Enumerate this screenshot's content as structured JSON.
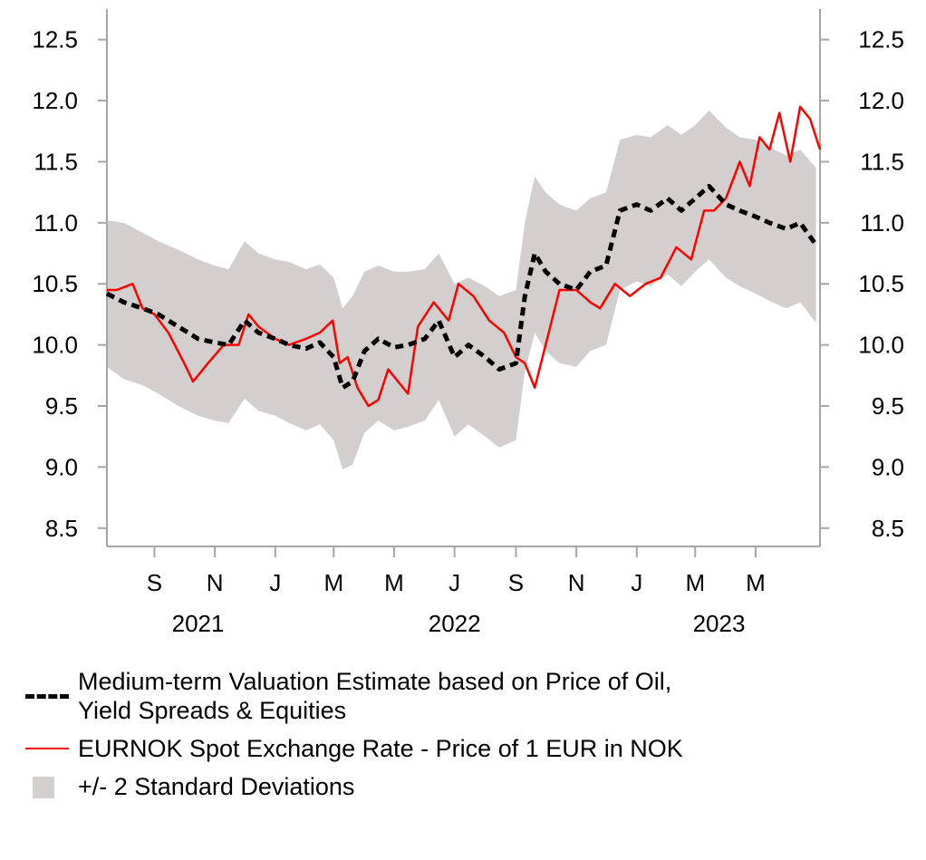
{
  "chart_data": {
    "type": "line",
    "title": "",
    "xlabel": "",
    "ylabel": "",
    "ylim": [
      8.35,
      12.75
    ],
    "yticks": [
      "12.5",
      "12.0",
      "11.5",
      "11.0",
      "10.5",
      "10.0",
      "9.5",
      "9.0",
      "8.5"
    ],
    "ytick_values": [
      12.5,
      12.0,
      11.5,
      11.0,
      10.5,
      10.0,
      9.5,
      9.0,
      8.5
    ],
    "x_range": [
      "2021-07-15",
      "2023-07-05"
    ],
    "x_ticks": [
      {
        "label": "S",
        "date": "2021-09-01"
      },
      {
        "label": "N",
        "date": "2021-11-01"
      },
      {
        "label": "J",
        "date": "2022-01-01"
      },
      {
        "label": "M",
        "date": "2022-03-01"
      },
      {
        "label": "M",
        "date": "2022-05-01"
      },
      {
        "label": "J",
        "date": "2022-07-01"
      },
      {
        "label": "S",
        "date": "2022-09-01"
      },
      {
        "label": "N",
        "date": "2022-11-01"
      },
      {
        "label": "J",
        "date": "2023-01-01"
      },
      {
        "label": "M",
        "date": "2023-03-01"
      },
      {
        "label": "M",
        "date": "2023-05-01"
      }
    ],
    "year_labels": [
      {
        "label": "2021",
        "date": "2021-10-15"
      },
      {
        "label": "2022",
        "date": "2022-07-01"
      },
      {
        "label": "2023",
        "date": "2023-03-25"
      }
    ],
    "grid": false,
    "legend_position": "bottom",
    "colors": {
      "valuation": "#000000",
      "spot": "#ff0000",
      "band": "#d3cfcf"
    },
    "series": [
      {
        "name": "Medium-term Valuation Estimate based on Price of Oil, Yield Spreads & Equities",
        "style": "dashed",
        "x": [
          "2021-07-15",
          "2021-08-01",
          "2021-08-20",
          "2021-09-05",
          "2021-09-25",
          "2021-10-15",
          "2021-11-01",
          "2021-11-15",
          "2021-12-01",
          "2021-12-15",
          "2022-01-01",
          "2022-01-15",
          "2022-02-01",
          "2022-02-15",
          "2022-03-01",
          "2022-03-10",
          "2022-03-20",
          "2022-04-01",
          "2022-04-15",
          "2022-05-01",
          "2022-05-15",
          "2022-06-01",
          "2022-06-15",
          "2022-07-01",
          "2022-07-15",
          "2022-08-01",
          "2022-08-15",
          "2022-09-01",
          "2022-09-10",
          "2022-09-20",
          "2022-10-01",
          "2022-10-15",
          "2022-11-01",
          "2022-11-15",
          "2022-12-01",
          "2022-12-15",
          "2023-01-01",
          "2023-01-15",
          "2023-02-01",
          "2023-02-15",
          "2023-03-01",
          "2023-03-15",
          "2023-04-01",
          "2023-04-15",
          "2023-05-01",
          "2023-05-15",
          "2023-06-01",
          "2023-06-15",
          "2023-07-01"
        ],
        "y": [
          10.42,
          10.35,
          10.3,
          10.25,
          10.15,
          10.05,
          10.02,
          10.0,
          10.2,
          10.1,
          10.05,
          10.0,
          9.97,
          10.02,
          9.9,
          9.65,
          9.7,
          9.95,
          10.05,
          9.98,
          10.0,
          10.05,
          10.2,
          9.9,
          10.0,
          9.9,
          9.8,
          9.85,
          10.4,
          10.75,
          10.6,
          10.5,
          10.45,
          10.6,
          10.65,
          11.1,
          11.15,
          11.1,
          11.2,
          11.1,
          11.2,
          11.3,
          11.15,
          11.1,
          11.05,
          11.0,
          10.95,
          11.0,
          10.82
        ]
      },
      {
        "name": "EURNOK Spot Exchange Rate - Price of 1 EUR in NOK",
        "style": "solid",
        "x": [
          "2021-07-15",
          "2021-07-25",
          "2021-08-10",
          "2021-08-20",
          "2021-09-01",
          "2021-09-15",
          "2021-10-01",
          "2021-10-10",
          "2021-10-25",
          "2021-11-10",
          "2021-11-25",
          "2021-12-05",
          "2021-12-15",
          "2022-01-01",
          "2022-01-15",
          "2022-02-01",
          "2022-02-15",
          "2022-02-28",
          "2022-03-07",
          "2022-03-15",
          "2022-03-25",
          "2022-04-05",
          "2022-04-15",
          "2022-04-25",
          "2022-05-05",
          "2022-05-15",
          "2022-05-25",
          "2022-06-10",
          "2022-06-25",
          "2022-07-05",
          "2022-07-20",
          "2022-08-05",
          "2022-08-20",
          "2022-09-01",
          "2022-09-10",
          "2022-09-20",
          "2022-10-01",
          "2022-10-15",
          "2022-11-01",
          "2022-11-15",
          "2022-11-25",
          "2022-12-10",
          "2022-12-25",
          "2023-01-10",
          "2023-01-25",
          "2023-02-10",
          "2023-02-25",
          "2023-03-10",
          "2023-03-20",
          "2023-04-01",
          "2023-04-15",
          "2023-04-25",
          "2023-05-05",
          "2023-05-15",
          "2023-05-25",
          "2023-06-05",
          "2023-06-15",
          "2023-06-25",
          "2023-07-05"
        ],
        "y": [
          10.45,
          10.45,
          10.5,
          10.3,
          10.25,
          10.1,
          9.85,
          9.7,
          9.85,
          10.0,
          10.0,
          10.25,
          10.15,
          10.05,
          10.0,
          10.05,
          10.1,
          10.2,
          9.85,
          9.9,
          9.65,
          9.5,
          9.55,
          9.8,
          9.7,
          9.6,
          10.15,
          10.35,
          10.2,
          10.5,
          10.4,
          10.2,
          10.1,
          9.9,
          9.85,
          9.65,
          10.0,
          10.45,
          10.45,
          10.35,
          10.3,
          10.5,
          10.4,
          10.5,
          10.55,
          10.8,
          10.7,
          11.1,
          11.1,
          11.2,
          11.5,
          11.3,
          11.7,
          11.6,
          11.9,
          11.5,
          11.95,
          11.85,
          11.6
        ]
      },
      {
        "name": "+/- 2 Standard Deviations",
        "style": "band",
        "x": [
          "2021-07-15",
          "2021-08-01",
          "2021-08-20",
          "2021-09-05",
          "2021-09-25",
          "2021-10-15",
          "2021-11-01",
          "2021-11-15",
          "2021-12-01",
          "2021-12-15",
          "2022-01-01",
          "2022-01-15",
          "2022-02-01",
          "2022-02-15",
          "2022-03-01",
          "2022-03-10",
          "2022-03-20",
          "2022-04-01",
          "2022-04-15",
          "2022-05-01",
          "2022-05-15",
          "2022-06-01",
          "2022-06-15",
          "2022-07-01",
          "2022-07-15",
          "2022-08-01",
          "2022-08-15",
          "2022-09-01",
          "2022-09-10",
          "2022-09-20",
          "2022-10-01",
          "2022-10-15",
          "2022-11-01",
          "2022-11-15",
          "2022-12-01",
          "2022-12-15",
          "2023-01-01",
          "2023-01-15",
          "2023-02-01",
          "2023-02-15",
          "2023-03-01",
          "2023-03-15",
          "2023-04-01",
          "2023-04-15",
          "2023-05-01",
          "2023-05-15",
          "2023-06-01",
          "2023-06-15",
          "2023-07-01"
        ],
        "upper": [
          11.02,
          11.0,
          10.92,
          10.85,
          10.78,
          10.7,
          10.65,
          10.62,
          10.85,
          10.75,
          10.7,
          10.68,
          10.62,
          10.66,
          10.55,
          10.3,
          10.4,
          10.6,
          10.65,
          10.6,
          10.6,
          10.62,
          10.75,
          10.5,
          10.55,
          10.48,
          10.4,
          10.45,
          11.0,
          11.38,
          11.25,
          11.15,
          11.1,
          11.2,
          11.25,
          11.68,
          11.72,
          11.7,
          11.8,
          11.72,
          11.8,
          11.92,
          11.78,
          11.7,
          11.68,
          11.62,
          11.55,
          11.6,
          11.45
        ],
        "lower": [
          9.82,
          9.72,
          9.67,
          9.6,
          9.5,
          9.42,
          9.38,
          9.36,
          9.56,
          9.46,
          9.42,
          9.36,
          9.3,
          9.35,
          9.22,
          8.98,
          9.02,
          9.28,
          9.38,
          9.3,
          9.33,
          9.38,
          9.55,
          9.25,
          9.35,
          9.25,
          9.16,
          9.22,
          9.78,
          10.1,
          9.95,
          9.85,
          9.82,
          9.95,
          10.0,
          10.45,
          10.52,
          10.48,
          10.58,
          10.48,
          10.6,
          10.7,
          10.55,
          10.48,
          10.42,
          10.36,
          10.3,
          10.35,
          10.18
        ]
      }
    ]
  },
  "legend": {
    "items": [
      {
        "line1": "Medium-term Valuation Estimate based on Price of Oil,",
        "line2": "Yield Spreads & Equities"
      },
      {
        "line1": "EURNOK Spot Exchange Rate - Price of 1 EUR in NOK"
      },
      {
        "line1": "+/- 2 Standard Deviations"
      }
    ]
  }
}
